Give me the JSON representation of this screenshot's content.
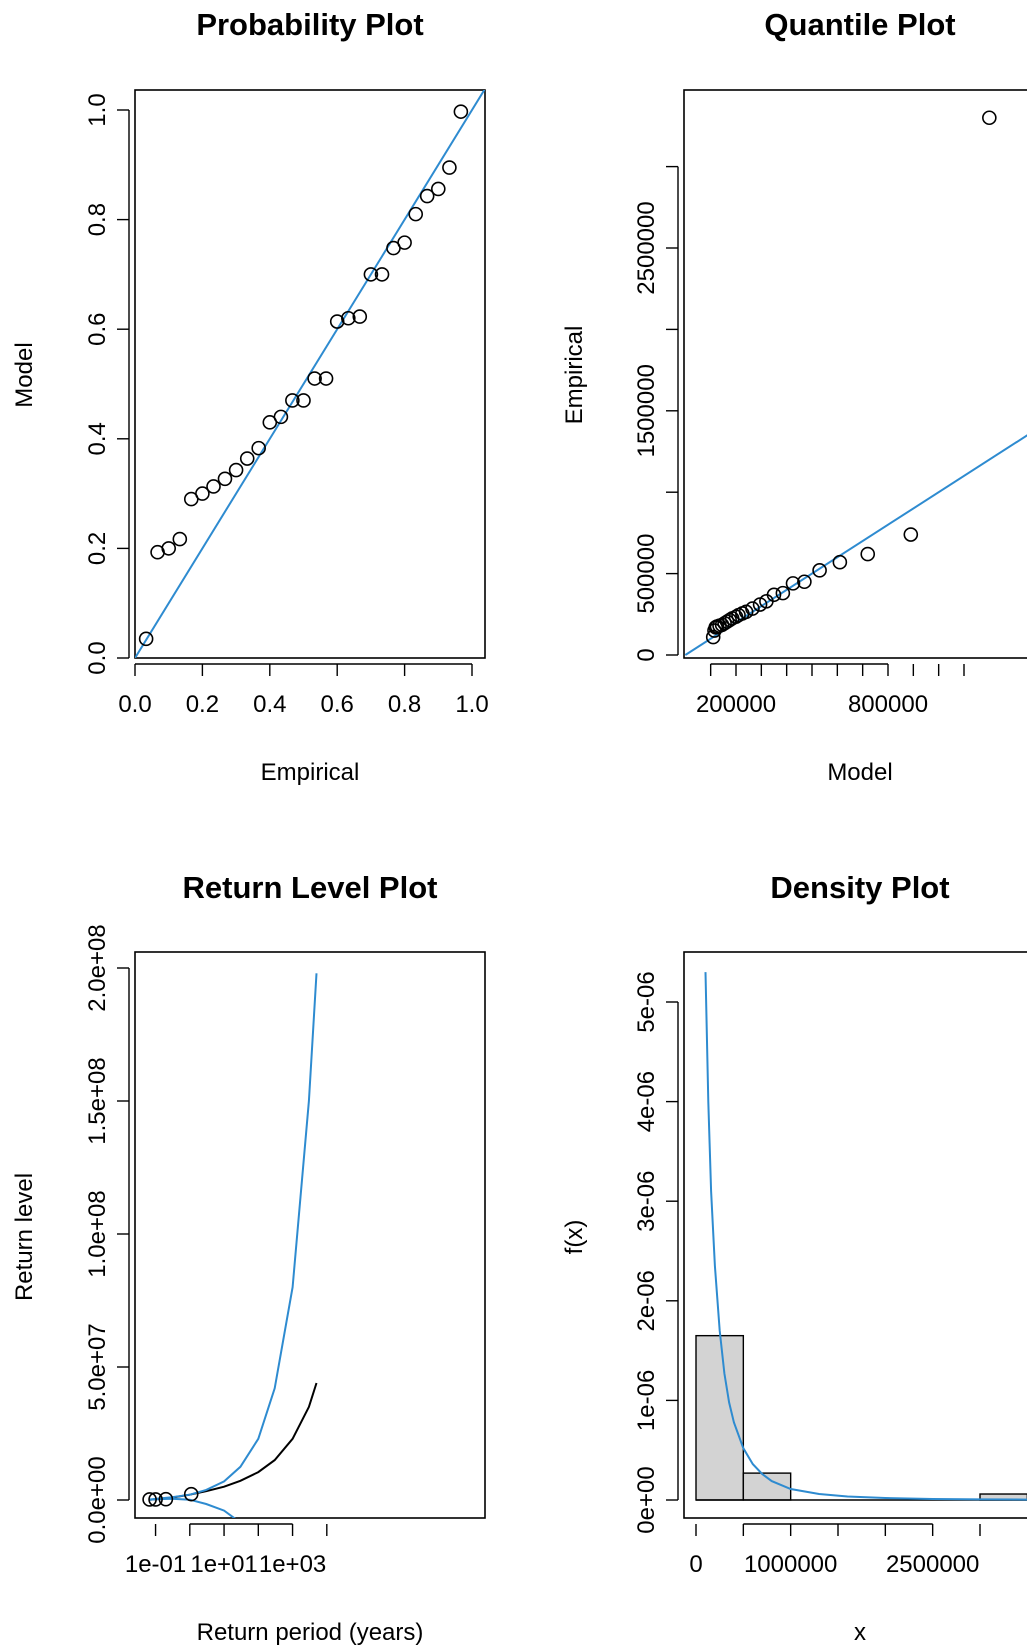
{
  "colors": {
    "fit": "#2e8bd0",
    "points": "#000000",
    "bar_fill": "#d3d3d3",
    "bar_stroke": "#000000"
  },
  "chart_data": [
    {
      "type": "scatter",
      "title": "Probability Plot",
      "xlabel": "Empirical",
      "ylabel": "Model",
      "xlim": [
        0,
        1.0
      ],
      "ylim": [
        0,
        1.0
      ],
      "xticks": [
        "0.0",
        "0.2",
        "0.4",
        "0.6",
        "0.8",
        "1.0"
      ],
      "yticks": [
        "0.0",
        "0.2",
        "0.4",
        "0.6",
        "0.8",
        "1.0"
      ],
      "reference_line": "y = x",
      "x": [
        0.033,
        0.067,
        0.1,
        0.133,
        0.167,
        0.2,
        0.233,
        0.267,
        0.3,
        0.333,
        0.367,
        0.4,
        0.433,
        0.467,
        0.5,
        0.533,
        0.567,
        0.6,
        0.633,
        0.667,
        0.7,
        0.733,
        0.767,
        0.8,
        0.833,
        0.867,
        0.9,
        0.933,
        0.967
      ],
      "y": [
        0.035,
        0.193,
        0.2,
        0.217,
        0.29,
        0.3,
        0.313,
        0.327,
        0.343,
        0.364,
        0.383,
        0.43,
        0.44,
        0.47,
        0.47,
        0.51,
        0.51,
        0.614,
        0.62,
        0.623,
        0.7,
        0.7,
        0.748,
        0.758,
        0.81,
        0.843,
        0.856,
        0.895,
        0.997
      ]
    },
    {
      "type": "scatter",
      "title": "Quantile Plot",
      "xlabel": "Model",
      "ylabel": "Empirical",
      "xlim": [
        50000,
        1200000
      ],
      "ylim": [
        0,
        3300000
      ],
      "xticks": [
        "200000",
        "800000"
      ],
      "yticks": [
        "0",
        "500000",
        "1500000",
        "2500000"
      ],
      "reference_line": "y = x",
      "x": [
        110000,
        115000,
        120000,
        125000,
        135000,
        145000,
        155000,
        165000,
        175000,
        185000,
        200000,
        210000,
        225000,
        240000,
        265000,
        295000,
        320000,
        350000,
        385000,
        425000,
        470000,
        530000,
        610000,
        720000,
        890000,
        1200000
      ],
      "y": [
        110000,
        150000,
        170000,
        175000,
        180000,
        185000,
        195000,
        205000,
        215000,
        225000,
        235000,
        245000,
        255000,
        265000,
        285000,
        310000,
        330000,
        370000,
        380000,
        440000,
        450000,
        520000,
        570000,
        620000,
        740000,
        3300000
      ]
    },
    {
      "type": "line",
      "title": "Return Level Plot",
      "xlabel": "Return period (years)",
      "ylabel": "Return level",
      "x_scale": "log",
      "xlim": [
        0.05,
        10000
      ],
      "ylim": [
        0,
        200000000
      ],
      "xticks": [
        "1e-01",
        "1e+01",
        "1e+03"
      ],
      "yticks": [
        "0.0e+00",
        "5.0e+07",
        "1.0e+08",
        "1.5e+08",
        "2.0e+08"
      ],
      "series": [
        {
          "role": "estimate",
          "x": [
            0.067,
            0.1,
            0.3,
            1,
            3,
            10,
            30,
            100,
            300,
            1000,
            3000,
            5000
          ],
          "y": [
            100000,
            300000,
            900000,
            2000000,
            3300000,
            5000000,
            7200000,
            10500000,
            15000000,
            23000000,
            35000000,
            44000000
          ]
        },
        {
          "role": "upper-bound",
          "x": [
            0.067,
            0.1,
            0.3,
            1,
            3,
            10,
            30,
            100,
            300,
            1000,
            3000,
            5000
          ],
          "y": [
            200000,
            400000,
            1000000,
            2000000,
            3800000,
            7000000,
            12500000,
            23000000,
            42000000,
            80000000,
            150000000,
            198000000
          ]
        },
        {
          "role": "lower-bound",
          "x": [
            0.067,
            0.1,
            0.3,
            1,
            3,
            10,
            30,
            50
          ],
          "y": [
            100000,
            300000,
            500000,
            100000,
            -1500000,
            -4000000,
            -8500000,
            -12000000
          ]
        }
      ],
      "points": {
        "x": [
          0.067,
          0.1,
          0.2,
          1.1
        ],
        "y": [
          200000,
          200000,
          300000,
          2200000
        ]
      }
    },
    {
      "type": "bar",
      "title": "Density Plot",
      "xlabel": "x",
      "ylabel": "f(x)",
      "xlim": [
        0,
        3500000
      ],
      "ylim": [
        0,
        5e-06
      ],
      "xticks": [
        "0",
        "1000000",
        "2500000"
      ],
      "yticks": [
        "0e+00",
        "1e-06",
        "2e-06",
        "3e-06",
        "4e-06",
        "5e-06"
      ],
      "bins": [
        {
          "from": 0,
          "to": 500000,
          "density": 1.65e-06
        },
        {
          "from": 500000,
          "to": 1000000,
          "density": 2.7e-07
        },
        {
          "from": 3000000,
          "to": 3500000,
          "density": 6e-08
        }
      ],
      "density_curve": {
        "x": [
          100000,
          130000,
          160000,
          200000,
          250000,
          300000,
          350000,
          400000,
          500000,
          600000,
          700000,
          800000,
          1000000,
          1300000,
          1600000,
          2000000,
          2500000,
          3000000,
          3500000
        ],
        "y": [
          5.3e-06,
          4e-06,
          3.1e-06,
          2.35e-06,
          1.7e-06,
          1.27e-06,
          9.8e-07,
          7.8e-07,
          5.2e-07,
          3.6e-07,
          2.6e-07,
          1.9e-07,
          1.1e-07,
          6e-08,
          3.5e-08,
          2e-08,
          1e-08,
          6e-09,
          4e-09
        ]
      }
    }
  ]
}
